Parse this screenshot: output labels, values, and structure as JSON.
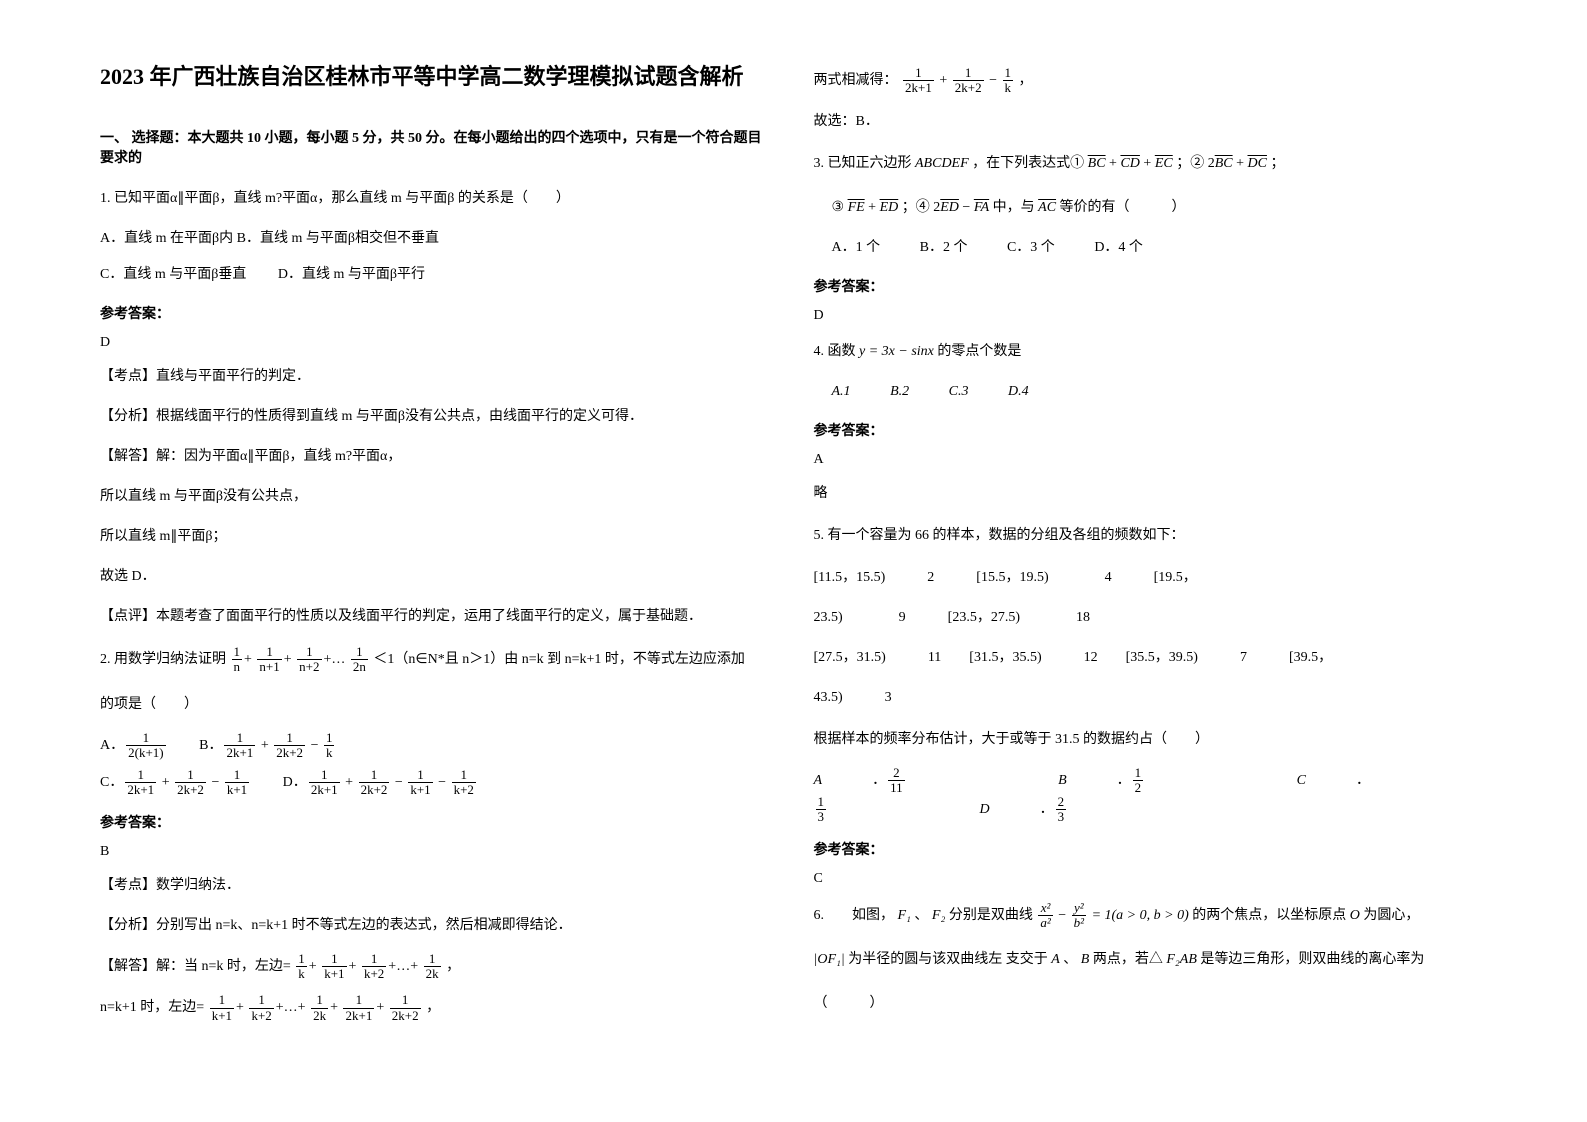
{
  "title": "2023 年广西壮族自治区桂林市平等中学高二数学理模拟试题含解析",
  "sec1_heading": "一、 选择题：本大题共 10 小题，每小题 5 分，共 50 分。在每小题给出的四个选项中，只有是一个符合题目要求的",
  "q1": {
    "stem": "1. 已知平面α∥平面β，直线 m?平面α，那么直线 m 与平面β 的关系是（　　）",
    "optA": "A．直线 m 在平面β内",
    "optB": "B．直线 m 与平面β相交但不垂直",
    "optC": "C．直线 m 与平面β垂直",
    "optD": "D．直线 m 与平面β平行",
    "ans_label": "参考答案：",
    "ans": "D",
    "e1": "【考点】直线与平面平行的判定．",
    "e2": "【分析】根据线面平行的性质得到直线 m 与平面β没有公共点，由线面平行的定义可得．",
    "e3": "【解答】解：因为平面α∥平面β，直线 m?平面α，",
    "e4": "所以直线 m 与平面β没有公共点，",
    "e5": "所以直线 m∥平面β；",
    "e6": "故选 D．",
    "e7": "【点评】本题考查了面面平行的性质以及线面平行的判定，运用了线面平行的定义，属于基础题．"
  },
  "q2": {
    "stem_a": "2. 用数学归纳法证明",
    "stem_b": "＜1（n∈N*且 n＞1）由 n=k 到 n=k+1 时，不等式左边应添加",
    "stem_c": "的项是（　　）",
    "ans_label": "参考答案：",
    "ans": "B",
    "e1": "【考点】数学归纳法．",
    "e2": "【分析】分别写出 n=k、n=k+1 时不等式左边的表达式，然后相减即得结论．",
    "e3a": "【解答】解：当 n=k 时，左边=",
    "e3b": "，",
    "e4a": "n=k+1 时，左边=",
    "e4b": "，"
  },
  "col2": {
    "r1a": "两式相减得：",
    "r1b": "，",
    "r2": "故选：B．"
  },
  "q3": {
    "stem1a": "3. 已知正六边形",
    "stem1abc": "ABCDEF",
    "stem1b": "，在下列表达式①",
    "stem1c": "；②",
    "stem1d": "；",
    "stem2a": "③",
    "stem2b": "；④",
    "stem2c": "中，与",
    "stem2d": "等价的有（　　　）",
    "optA": "A．1 个",
    "optB": "B．2 个",
    "optC": "C．3 个",
    "optD": "D．4 个",
    "ans_label": "参考答案：",
    "ans": "D"
  },
  "q4": {
    "stem_a": "4. 函数",
    "stem_math": "y = 3x − sinx",
    "stem_b": "的零点个数是",
    "optA": "A.1",
    "optB": "B.2",
    "optC": "C.3",
    "optD": "D.4",
    "ans_label": "参考答案：",
    "ans": "A",
    "omit": "略"
  },
  "q5": {
    "stem": "5. 有一个容量为 66 的样本，数据的分组及各组的频数如下：",
    "row1": "[11.5，15.5)　　　2　　　[15.5，19.5)　　　　4　　　[19.5，",
    "row2": "23.5)　　　　9　　　[23.5，27.5)　　　　18",
    "row3": "[27.5，31.5)　　　11　　[31.5，35.5)　　　12　　[35.5，39.5)　　　7　　　[39.5，",
    "row4": "43.5)　　　3",
    "sub": "根据样本的频率分布估计，大于或等于 31.5 的数据约占（　　）",
    "ans_label": "参考答案：",
    "ans": "C"
  },
  "q6": {
    "stem_a": "6.　　如图，",
    "stem_f1": "F₁",
    "stem_sep": "、",
    "stem_f2": "F₂",
    "stem_b": "分别是双曲线",
    "stem_c": "的两个焦点，以坐标原点",
    "stem_o": "O",
    "stem_d": "为圆心，",
    "stem2a": "|OF₁|",
    "stem2b": "为半径的圆与该双曲线左 支交于",
    "stem2c": "A",
    "stem2d": "、",
    "stem2e": "B",
    "stem2f": "两点，若△",
    "stem2g": "F₂AB",
    "stem2h": "是等边三角形，则双曲线的离心率为",
    "stem3": "（　　　）"
  },
  "labels": {
    "optA": "A",
    "optB": "B",
    "optC": "C",
    "optD": "D"
  }
}
